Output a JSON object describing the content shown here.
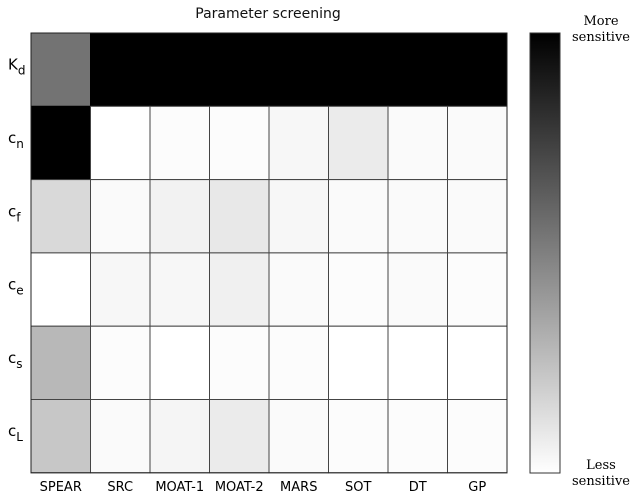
{
  "chart_data": {
    "type": "heatmap",
    "title": "Parameter screening",
    "xlabel": "",
    "ylabel": "",
    "columns": [
      "SPEAR",
      "SRC",
      "MOAT-1",
      "MOAT-2",
      "MARS",
      "SOT",
      "DT",
      "GP"
    ],
    "rows": [
      {
        "label": "K",
        "sub": "d"
      },
      {
        "label": "c",
        "sub": "n"
      },
      {
        "label": "c",
        "sub": "f"
      },
      {
        "label": "c",
        "sub": "e"
      },
      {
        "label": "c",
        "sub": "s"
      },
      {
        "label": "c",
        "sub": "L"
      }
    ],
    "values": [
      [
        0.55,
        1.0,
        1.0,
        1.0,
        1.0,
        1.0,
        1.0,
        1.0
      ],
      [
        1.0,
        0.0,
        0.01,
        0.01,
        0.03,
        0.08,
        0.02,
        0.02
      ],
      [
        0.15,
        0.02,
        0.05,
        0.09,
        0.03,
        0.02,
        0.02,
        0.02
      ],
      [
        0.0,
        0.03,
        0.03,
        0.06,
        0.02,
        0.01,
        0.02,
        0.01
      ],
      [
        0.28,
        0.01,
        0.0,
        0.01,
        0.01,
        0.0,
        0.0,
        0.0
      ],
      [
        0.22,
        0.02,
        0.04,
        0.08,
        0.02,
        0.01,
        0.01,
        0.01
      ]
    ],
    "value_range": [
      0,
      1
    ],
    "colormap": {
      "low": "#ffffff",
      "high": "#000000"
    },
    "colorbar": {
      "top_label": [
        "More",
        "sensitive"
      ],
      "bottom_label": [
        "Less",
        "sensitive"
      ]
    },
    "grid": true,
    "legend_position": "right"
  }
}
